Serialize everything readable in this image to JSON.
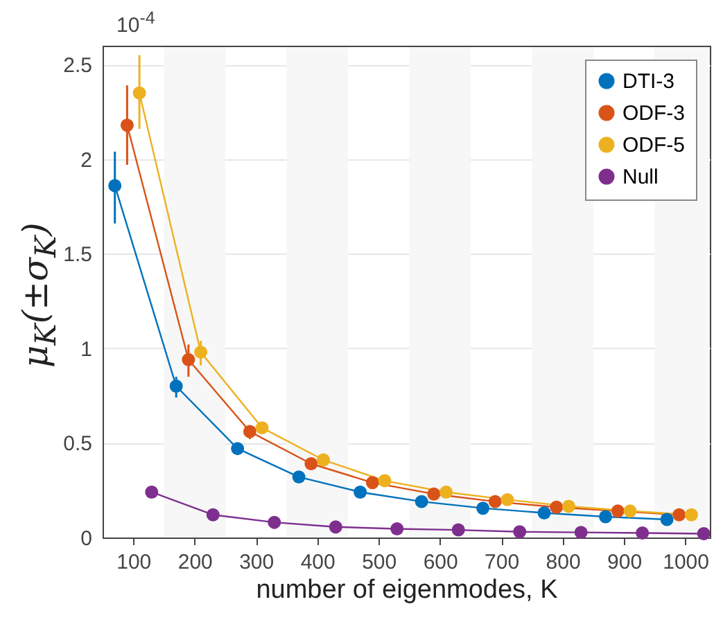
{
  "chart_data": {
    "type": "line",
    "xlabel": "number of eigenmodes, K",
    "ylabel": "μ$_{K}$(±σ$_{K}$)",
    "annotations": [
      "10$^{-4}$"
    ],
    "xlim": [
      50,
      1040
    ],
    "xticks": [
      100,
      200,
      300,
      400,
      500,
      600,
      700,
      800,
      900,
      1000
    ],
    "ylim": [
      0,
      2.6
    ],
    "yticks": [
      0,
      0.5,
      1,
      1.5,
      2,
      2.5
    ],
    "grid": "y",
    "legend": "top right",
    "marker": "circle",
    "line_style": "solid",
    "bands": [
      {
        "axis": "x",
        "from": 150,
        "to": 250,
        "color": "#f7f7f7"
      },
      {
        "axis": "x",
        "from": 350,
        "to": 450,
        "color": "#f7f7f7"
      },
      {
        "axis": "x",
        "from": 550,
        "to": 650,
        "color": "#f7f7f7"
      },
      {
        "axis": "x",
        "from": 750,
        "to": 850,
        "color": "#f7f7f7"
      },
      {
        "axis": "x",
        "from": 950,
        "to": 1040,
        "color": "#f7f7f7"
      }
    ],
    "series": [
      {
        "name": "DTI-3",
        "color": "#0072bd",
        "x": [
          70,
          170,
          270,
          370,
          470,
          570,
          670,
          770,
          870,
          970
        ],
        "values": [
          1.86,
          0.8,
          0.47,
          0.32,
          0.24,
          0.19,
          0.155,
          0.13,
          0.11,
          0.095
        ],
        "errors": [
          [
            1.66,
            2.04
          ],
          [
            0.74,
            0.85
          ],
          null,
          null,
          null,
          null,
          null,
          null,
          null,
          null
        ]
      },
      {
        "name": "ODF-3",
        "color": "#d95319",
        "x": [
          90,
          190,
          290,
          390,
          490,
          590,
          690,
          790,
          890,
          990
        ],
        "values": [
          2.18,
          0.94,
          0.56,
          0.39,
          0.29,
          0.23,
          0.19,
          0.16,
          0.14,
          0.12
        ],
        "errors": [
          [
            1.97,
            2.39
          ],
          [
            0.85,
            1.02
          ],
          [
            0.52,
            0.59
          ],
          null,
          null,
          null,
          null,
          null,
          null,
          null
        ]
      },
      {
        "name": "ODF-5",
        "color": "#edb120",
        "x": [
          110,
          210,
          310,
          410,
          510,
          610,
          710,
          810,
          910,
          1010
        ],
        "values": [
          2.35,
          0.98,
          0.58,
          0.41,
          0.3,
          0.24,
          0.2,
          0.165,
          0.14,
          0.12
        ],
        "errors": [
          [
            2.16,
            2.55
          ],
          [
            0.91,
            1.04
          ],
          null,
          null,
          null,
          null,
          null,
          null,
          null,
          null
        ]
      },
      {
        "name": "Null",
        "color": "#7e2f8e",
        "x": [
          130,
          230,
          330,
          430,
          530,
          630,
          730,
          830,
          930,
          1030
        ],
        "values": [
          0.24,
          0.12,
          0.08,
          0.056,
          0.046,
          0.04,
          0.03,
          0.027,
          0.024,
          0.02
        ],
        "errors": [
          null,
          null,
          null,
          null,
          null,
          null,
          null,
          null,
          null,
          null
        ]
      }
    ]
  }
}
